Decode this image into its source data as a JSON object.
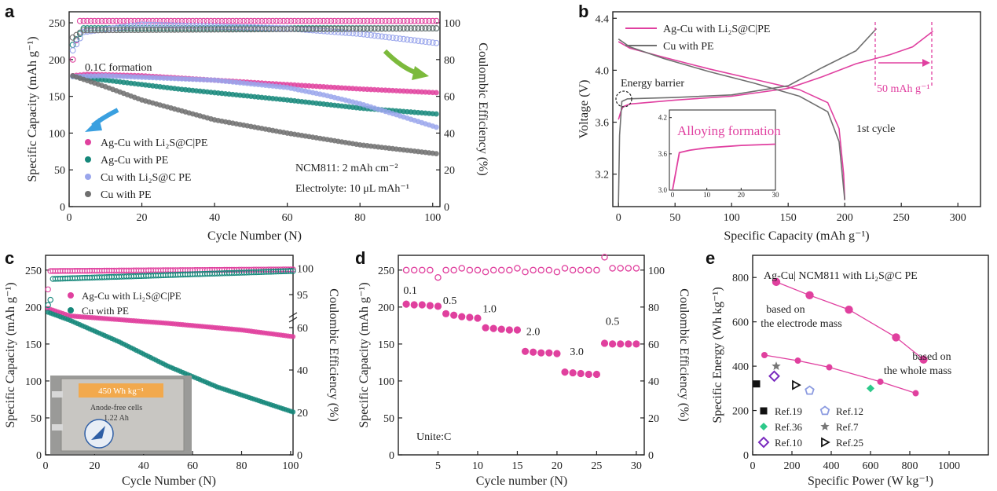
{
  "colors": {
    "pink": "#e0409e",
    "teal": "#15877a",
    "blue": "#9aa6ec",
    "gray": "#6f6f6f",
    "pinkline": "#e040a0"
  },
  "chart_data": [
    {
      "id": "a",
      "panel_label": "a",
      "type": "scatter",
      "xlabel": "Cycle Number (N)",
      "ylabel": "Specific Capacity (mAh g⁻¹)",
      "y2label": "Coulombic Efficiency (%)",
      "xlim": [
        0,
        102
      ],
      "ylim": [
        0,
        265
      ],
      "y2lim": [
        0,
        106
      ],
      "xticks": [
        0,
        20,
        40,
        60,
        80,
        100
      ],
      "yticks": [
        0,
        50,
        100,
        150,
        200,
        250
      ],
      "y2ticks": [
        0,
        20,
        40,
        60,
        80,
        100
      ],
      "annotations": [
        "0.1C formation",
        "NCM811: 2  mAh cm⁻²",
        "Electrolyte: 10 μL mAh⁻¹"
      ],
      "legend": [
        "Ag-Cu with Li₂S@C|PE",
        "Ag-Cu with PE",
        "Cu with Li₂S@C PE",
        "Cu with PE"
      ],
      "series": [
        {
          "name": "Ag-Cu with Li₂S@C|PE",
          "color": "pink",
          "capacity": [
            [
              1,
              178
            ],
            [
              5,
              180
            ],
            [
              20,
              178
            ],
            [
              40,
              172
            ],
            [
              60,
              166
            ],
            [
              80,
              160
            ],
            [
              101,
              155
            ]
          ],
          "ce": [
            [
              1,
              80
            ],
            [
              3,
              101
            ],
            [
              100,
              101
            ]
          ]
        },
        {
          "name": "Ag-Cu with PE",
          "color": "teal",
          "capacity": [
            [
              1,
              177
            ],
            [
              10,
              172
            ],
            [
              30,
              160
            ],
            [
              60,
              145
            ],
            [
              80,
              134
            ],
            [
              101,
              126
            ]
          ],
          "ce": [
            [
              1,
              88
            ],
            [
              4,
              97
            ],
            [
              100,
              97
            ]
          ]
        },
        {
          "name": "Cu with Li₂S@C PE",
          "color": "blue",
          "capacity": [
            [
              1,
              177
            ],
            [
              10,
              178
            ],
            [
              40,
              172
            ],
            [
              60,
              162
            ],
            [
              70,
              152
            ],
            [
              80,
              140
            ],
            [
              90,
              125
            ],
            [
              101,
              108
            ]
          ],
          "ce": [
            [
              1,
              85
            ],
            [
              4,
              95
            ],
            [
              20,
              99
            ],
            [
              60,
              97
            ],
            [
              80,
              94
            ],
            [
              101,
              89
            ]
          ]
        },
        {
          "name": "Cu with PE",
          "color": "gray",
          "capacity": [
            [
              1,
              178
            ],
            [
              10,
              163
            ],
            [
              20,
              145
            ],
            [
              40,
              118
            ],
            [
              60,
              100
            ],
            [
              80,
              84
            ],
            [
              101,
              72
            ]
          ],
          "ce": [
            [
              1,
              92
            ],
            [
              4,
              96
            ],
            [
              100,
              97
            ]
          ]
        }
      ]
    },
    {
      "id": "b",
      "panel_label": "b",
      "type": "line",
      "xlabel": "Specific Capacity (mAh g⁻¹)",
      "ylabel": "Voltage (V)",
      "xlim": [
        -5,
        320
      ],
      "ylim": [
        2.95,
        4.45
      ],
      "xticks": [
        0,
        50,
        100,
        150,
        200,
        250,
        300
      ],
      "yticks": [
        3.2,
        3.6,
        4.0,
        4.4
      ],
      "legend": [
        "Ag-Cu with Li₂S@C|PE",
        "Cu with PE"
      ],
      "annotations": [
        "Energy barrier",
        "1st cycle",
        "50 mAh g⁻¹"
      ],
      "series": [
        {
          "name": "Ag-Cu with Li₂S@C|PE",
          "color": "pinkline",
          "charge": [
            [
              0,
              3.62
            ],
            [
              2,
              3.68
            ],
            [
              4,
              3.72
            ],
            [
              10,
              3.74
            ],
            [
              50,
              3.77
            ],
            [
              100,
              3.8
            ],
            [
              150,
              3.86
            ],
            [
              180,
              3.95
            ],
            [
              210,
              4.05
            ],
            [
              240,
              4.12
            ],
            [
              260,
              4.18
            ],
            [
              278,
              4.3
            ]
          ],
          "discharge": [
            [
              0,
              4.22
            ],
            [
              10,
              4.17
            ],
            [
              40,
              4.1
            ],
            [
              80,
              4.01
            ],
            [
              120,
              3.93
            ],
            [
              160,
              3.85
            ],
            [
              185,
              3.75
            ],
            [
              195,
              3.55
            ],
            [
              199,
              3.2
            ],
            [
              200,
              3.0
            ]
          ]
        },
        {
          "name": "Cu with PE",
          "color": "gray",
          "charge": [
            [
              0,
              2.98
            ],
            [
              1,
              3.5
            ],
            [
              3,
              3.76
            ],
            [
              8,
              3.78
            ],
            [
              50,
              3.79
            ],
            [
              100,
              3.81
            ],
            [
              150,
              3.88
            ],
            [
              180,
              4.02
            ],
            [
              210,
              4.15
            ],
            [
              228,
              4.32
            ]
          ],
          "discharge": [
            [
              0,
              4.24
            ],
            [
              10,
              4.18
            ],
            [
              40,
              4.09
            ],
            [
              80,
              3.99
            ],
            [
              120,
              3.9
            ],
            [
              160,
              3.8
            ],
            [
              185,
              3.68
            ],
            [
              195,
              3.45
            ],
            [
              200,
              3.0
            ]
          ]
        }
      ],
      "inset": {
        "title": "Alloying formation",
        "xlim": [
          0,
          30
        ],
        "ylim": [
          3.0,
          4.3
        ],
        "xticks": [
          0,
          10,
          20,
          30
        ],
        "yticks": [
          3.0,
          3.6,
          4.2
        ],
        "series": [
          [
            0,
            3.0
          ],
          [
            2,
            3.62
          ],
          [
            5,
            3.66
          ],
          [
            10,
            3.7
          ],
          [
            20,
            3.74
          ],
          [
            30,
            3.76
          ]
        ]
      }
    },
    {
      "id": "c",
      "panel_label": "c",
      "type": "scatter",
      "xlabel": "Cycle Number (N)",
      "ylabel": "Specific Capacity (mAh g⁻¹)",
      "y2label": "Coulombic Efficiency (%)",
      "xlim": [
        0,
        101
      ],
      "ylim": [
        0,
        270
      ],
      "xticks": [
        0,
        20,
        40,
        60,
        80,
        100
      ],
      "yticks": [
        0,
        50,
        100,
        150,
        200,
        250
      ],
      "y2ticks": [
        0,
        20,
        40,
        60
      ],
      "y2ticks_upper": [
        95,
        100
      ],
      "legend": [
        "Ag-Cu with Li₂S@C|PE",
        "Cu with PE"
      ],
      "photo_labels": [
        "450 Wh kg⁻¹",
        "Anode-free cells",
        "1.22 Ah"
      ],
      "series": [
        {
          "name": "Ag-Cu with Li₂S@C|PE",
          "color": "pink",
          "capacity": [
            [
              1,
              198
            ],
            [
              10,
              188
            ],
            [
              50,
              178
            ],
            [
              80,
              169
            ],
            [
              101,
              160
            ]
          ],
          "ce": [
            [
              1,
              96
            ],
            [
              2,
              99.5
            ],
            [
              100,
              99.8
            ]
          ]
        },
        {
          "name": "Cu with PE",
          "color": "teal",
          "capacity": [
            [
              1,
              193
            ],
            [
              10,
              182
            ],
            [
              30,
              153
            ],
            [
              50,
              120
            ],
            [
              70,
              92
            ],
            [
              90,
              70
            ],
            [
              101,
              58
            ]
          ],
          "ce": [
            [
              1,
              93
            ],
            [
              2,
              94
            ],
            [
              3,
              98
            ],
            [
              100,
              99.5
            ]
          ]
        }
      ]
    },
    {
      "id": "d",
      "panel_label": "d",
      "type": "scatter",
      "xlabel": "Cycle number (N)",
      "ylabel": "Specific Capacity (mAh g⁻¹)",
      "y2label": "Coulombic Efficiency (%)",
      "xlim": [
        0,
        31
      ],
      "ylim": [
        0,
        270
      ],
      "y2lim": [
        0,
        108
      ],
      "xticks": [
        5,
        10,
        15,
        20,
        25,
        30
      ],
      "yticks": [
        0,
        50,
        100,
        150,
        200,
        250
      ],
      "y2ticks": [
        0,
        20,
        40,
        60,
        80,
        100
      ],
      "annotation": "Unite:C",
      "rate_labels": [
        "0.1",
        "0.5",
        "1.0",
        "2.0",
        "3.0",
        "0.5"
      ],
      "capacity": [
        204,
        203,
        203,
        202,
        201,
        191,
        189,
        187,
        186,
        185,
        172,
        171,
        170,
        169,
        169,
        140,
        139,
        138,
        138,
        137,
        112,
        111,
        110,
        109,
        109,
        151,
        150,
        150,
        150,
        150
      ],
      "ce": [
        100,
        100,
        100,
        100,
        96,
        100,
        100,
        101,
        100,
        100,
        99,
        100,
        100,
        100,
        101,
        99,
        100,
        100,
        100,
        99,
        101,
        100,
        100,
        100,
        100,
        107,
        101,
        101,
        101,
        101
      ]
    },
    {
      "id": "e",
      "panel_label": "e",
      "type": "scatter",
      "xlabel": "Specific Power (W kg⁻¹)",
      "ylabel": "Specific Energy (Wh kg⁻¹)",
      "xlim": [
        0,
        1200
      ],
      "ylim": [
        0,
        900
      ],
      "xticks": [
        0,
        200,
        400,
        600,
        800,
        1000
      ],
      "yticks": [
        0,
        200,
        400,
        600,
        800
      ],
      "title": "Ag-Cu| NCM811 with Li₂S@C PE",
      "annotations": [
        "based on",
        "the electrode mass",
        "based on",
        "the whole mass"
      ],
      "series": [
        {
          "name": "electrode mass",
          "color": "pink",
          "points": [
            [
              120,
              780
            ],
            [
              290,
              720
            ],
            [
              490,
              655
            ],
            [
              730,
              530
            ],
            [
              870,
              430
            ]
          ]
        },
        {
          "name": "whole mass",
          "color": "pink",
          "points": [
            [
              60,
              450
            ],
            [
              230,
              425
            ],
            [
              390,
              395
            ],
            [
              650,
              330
            ],
            [
              830,
              278
            ]
          ]
        }
      ],
      "refs": [
        {
          "name": "Ref.19",
          "marker": "square",
          "color": "#111111",
          "x": 20,
          "y": 320
        },
        {
          "name": "Ref.36",
          "marker": "diamond",
          "color": "#2dc98a",
          "x": 600,
          "y": 300
        },
        {
          "name": "Ref.10",
          "marker": "diamond2",
          "color": "#7a2bbf",
          "x": 110,
          "y": 355
        },
        {
          "name": "Ref.12",
          "marker": "pentagon",
          "color": "#8c9be0",
          "x": 290,
          "y": 290
        },
        {
          "name": "Ref.7",
          "marker": "star",
          "color": "#777777",
          "x": 120,
          "y": 400
        },
        {
          "name": "Ref.25",
          "marker": "triangle",
          "color": "#111111",
          "x": 220,
          "y": 315
        }
      ]
    }
  ]
}
